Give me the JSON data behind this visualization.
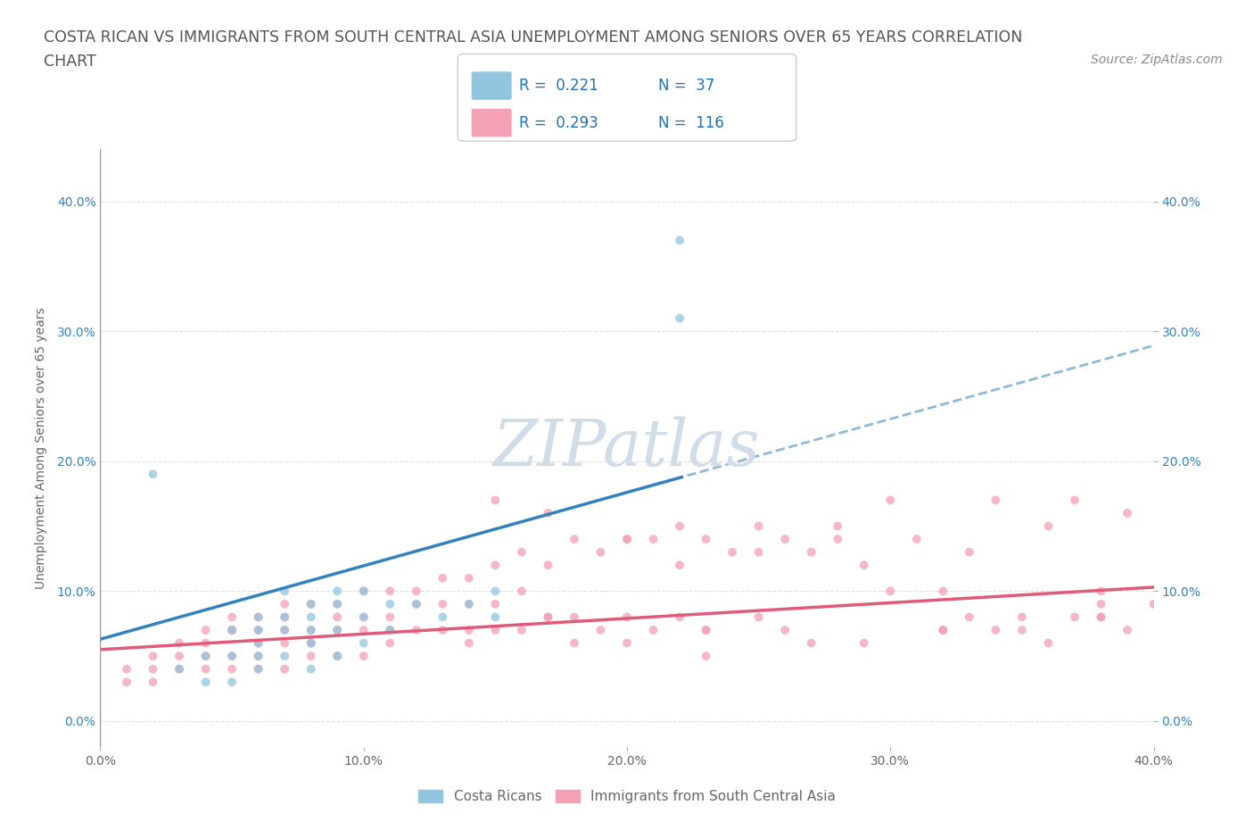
{
  "title_line1": "COSTA RICAN VS IMMIGRANTS FROM SOUTH CENTRAL ASIA UNEMPLOYMENT AMONG SENIORS OVER 65 YEARS CORRELATION",
  "title_line2": "CHART",
  "source_text": "Source: ZipAtlas.com",
  "ylabel": "Unemployment Among Seniors over 65 years",
  "xlim": [
    0.0,
    0.4
  ],
  "ylim": [
    -0.02,
    0.44
  ],
  "color_blue": "#92c5de",
  "color_pink": "#f4a0b5",
  "line_color_blue": "#3182bd",
  "line_color_pink": "#e05a7a",
  "tick_color_blue": "#3182bd",
  "watermark_color": "#d0dce8",
  "background_color": "#ffffff",
  "grid_color": "#dddddd",
  "title_fontsize": 12.5,
  "axis_label_fontsize": 10,
  "tick_fontsize": 10,
  "legend_fontsize": 11,
  "source_fontsize": 10,
  "scatter_size": 50,
  "scatter_alpha": 0.75,
  "r_value_color": "#2171b5",
  "blue_x": [
    0.02,
    0.03,
    0.04,
    0.04,
    0.05,
    0.05,
    0.05,
    0.06,
    0.06,
    0.06,
    0.06,
    0.06,
    0.07,
    0.07,
    0.07,
    0.07,
    0.08,
    0.08,
    0.08,
    0.08,
    0.08,
    0.09,
    0.09,
    0.09,
    0.09,
    0.1,
    0.1,
    0.1,
    0.11,
    0.11,
    0.12,
    0.13,
    0.14,
    0.15,
    0.15,
    0.22,
    0.22
  ],
  "blue_y": [
    0.19,
    0.04,
    0.05,
    0.03,
    0.07,
    0.05,
    0.03,
    0.08,
    0.07,
    0.06,
    0.05,
    0.04,
    0.1,
    0.08,
    0.07,
    0.05,
    0.09,
    0.08,
    0.07,
    0.06,
    0.04,
    0.1,
    0.09,
    0.07,
    0.05,
    0.1,
    0.08,
    0.06,
    0.09,
    0.07,
    0.09,
    0.08,
    0.09,
    0.1,
    0.08,
    0.31,
    0.37
  ],
  "pink_x": [
    0.01,
    0.01,
    0.02,
    0.02,
    0.02,
    0.03,
    0.03,
    0.03,
    0.04,
    0.04,
    0.04,
    0.04,
    0.05,
    0.05,
    0.05,
    0.05,
    0.06,
    0.06,
    0.06,
    0.06,
    0.06,
    0.07,
    0.07,
    0.07,
    0.07,
    0.07,
    0.08,
    0.08,
    0.08,
    0.08,
    0.09,
    0.09,
    0.09,
    0.09,
    0.1,
    0.1,
    0.1,
    0.1,
    0.11,
    0.11,
    0.11,
    0.12,
    0.12,
    0.12,
    0.13,
    0.13,
    0.13,
    0.14,
    0.14,
    0.14,
    0.15,
    0.15,
    0.15,
    0.16,
    0.16,
    0.16,
    0.17,
    0.17,
    0.18,
    0.18,
    0.19,
    0.19,
    0.2,
    0.2,
    0.21,
    0.21,
    0.22,
    0.22,
    0.23,
    0.23,
    0.24,
    0.25,
    0.25,
    0.26,
    0.27,
    0.28,
    0.29,
    0.3,
    0.31,
    0.32,
    0.33,
    0.34,
    0.34,
    0.35,
    0.36,
    0.37,
    0.37,
    0.38,
    0.38,
    0.39,
    0.39,
    0.4,
    0.15,
    0.17,
    0.2,
    0.22,
    0.25,
    0.28,
    0.3,
    0.33,
    0.35,
    0.38,
    0.05,
    0.08,
    0.11,
    0.14,
    0.17,
    0.2,
    0.23,
    0.26,
    0.29,
    0.32,
    0.36,
    0.18,
    0.23,
    0.27,
    0.32,
    0.38
  ],
  "pink_y": [
    0.04,
    0.03,
    0.05,
    0.04,
    0.03,
    0.06,
    0.05,
    0.04,
    0.07,
    0.06,
    0.05,
    0.04,
    0.08,
    0.07,
    0.05,
    0.04,
    0.08,
    0.07,
    0.06,
    0.05,
    0.04,
    0.09,
    0.08,
    0.07,
    0.06,
    0.04,
    0.09,
    0.07,
    0.06,
    0.05,
    0.09,
    0.08,
    0.07,
    0.05,
    0.1,
    0.08,
    0.07,
    0.05,
    0.1,
    0.08,
    0.06,
    0.1,
    0.09,
    0.07,
    0.11,
    0.09,
    0.07,
    0.11,
    0.09,
    0.07,
    0.12,
    0.09,
    0.07,
    0.13,
    0.1,
    0.07,
    0.12,
    0.08,
    0.14,
    0.08,
    0.13,
    0.07,
    0.14,
    0.08,
    0.14,
    0.07,
    0.15,
    0.08,
    0.14,
    0.07,
    0.13,
    0.15,
    0.08,
    0.14,
    0.13,
    0.14,
    0.12,
    0.17,
    0.14,
    0.1,
    0.13,
    0.07,
    0.17,
    0.08,
    0.15,
    0.08,
    0.17,
    0.1,
    0.08,
    0.16,
    0.07,
    0.09,
    0.17,
    0.16,
    0.14,
    0.12,
    0.13,
    0.15,
    0.1,
    0.08,
    0.07,
    0.09,
    0.07,
    0.06,
    0.07,
    0.06,
    0.08,
    0.06,
    0.05,
    0.07,
    0.06,
    0.07,
    0.06,
    0.06,
    0.07,
    0.06,
    0.07,
    0.08
  ]
}
